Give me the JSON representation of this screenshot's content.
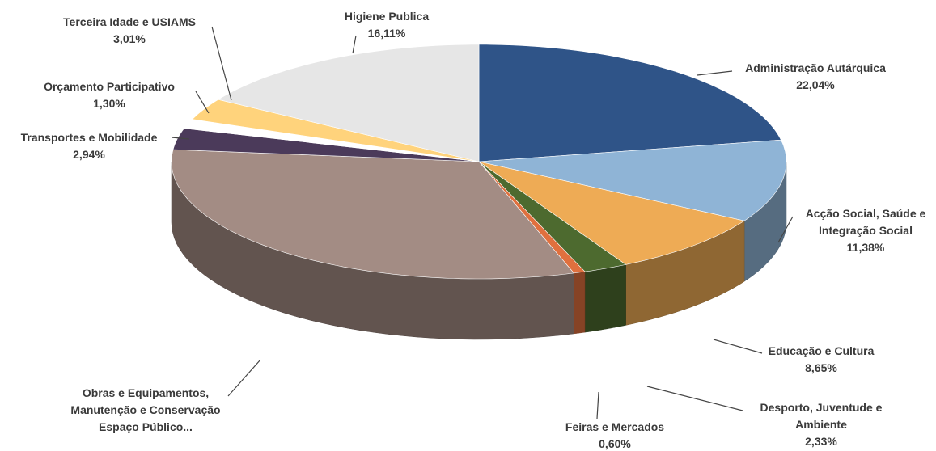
{
  "chart_data": {
    "type": "pie3d",
    "categories": [
      "Administração Autárquica",
      "Acção Social, Saúde e Integração Social",
      "Educação e Cultura",
      "Desporto, Juventude e Ambiente",
      "Feiras e Mercados",
      "Obras e Equipamentos, Manutenção e Conservação Espaço Público...",
      "Transportes e Mobilidade",
      "Orçamento Participativo",
      "Terceira Idade e USIAMS",
      "Higiene Publica"
    ],
    "values": [
      22.04,
      11.38,
      8.65,
      2.33,
      0.6,
      31.64,
      2.94,
      1.3,
      3.01,
      16.11
    ],
    "value_labels": [
      "22,04%",
      "11,38%",
      "8,65%",
      "2,33%",
      "0,60%",
      null,
      "2,94%",
      "1,30%",
      "3,01%",
      "16,11%"
    ],
    "colors": [
      "#2f5488",
      "#8fb4d6",
      "#eeab55",
      "#4d6a2f",
      "#e0703e",
      "#a38c84",
      "#4b3a5a",
      "#ffffff",
      "#ffd37c",
      "#e6e6e6"
    ]
  }
}
